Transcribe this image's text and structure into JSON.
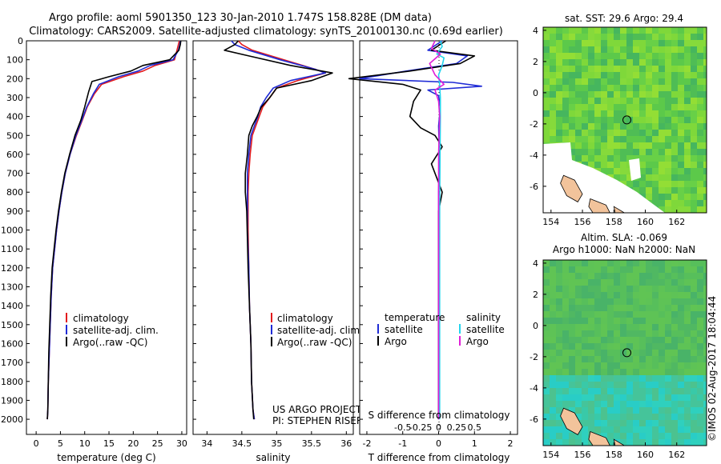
{
  "header": {
    "line1": "Argo profile: aoml 5901350_123 30-Jan-2010 1.747S 158.828E (DM data)",
    "line2": "Climatology: CARS2009. Satellite-adjusted climatology: synTS_20100130.nc (0.69d earlier)"
  },
  "colors": {
    "climatology": "#e31a1c",
    "satellite": "#1f2bd6",
    "argo": "#000000",
    "sat_salinity": "#23d5ee",
    "argo_salinity": "#e01ed8",
    "land": "#f2c39b"
  },
  "icons": {
    "legend_swatch": "line-swatch-icon",
    "float_marker": "circle-marker-icon"
  },
  "credits": {
    "project": "US ARGO PROJECT",
    "pi": "PI: STEPHEN RISER",
    "stamp": "©IMOS 02-Aug-2017 18:04:44"
  },
  "chart_data": [
    {
      "type": "line",
      "id": "temperature",
      "xlabel": "temperature (deg C)",
      "ylabel": "",
      "xlim": [
        -2,
        31
      ],
      "ylim": [
        2080,
        0
      ],
      "xticks": [
        0,
        5,
        10,
        15,
        20,
        25,
        30
      ],
      "yticks": [
        0,
        100,
        200,
        300,
        400,
        500,
        600,
        700,
        800,
        900,
        1000,
        1100,
        1200,
        1300,
        1400,
        1500,
        1600,
        1700,
        1800,
        1900,
        2000
      ],
      "legend": [
        "climatology",
        "satellite-adj. clim.",
        "Argo(..raw -QC)"
      ],
      "series": [
        {
          "name": "climatology",
          "color": "#e31a1c",
          "x": [
            29.5,
            29.3,
            29.0,
            28.5,
            24.5,
            22.0,
            18.0,
            13.5,
            12.0,
            10.5,
            9.5,
            8.3,
            7.0,
            6.0,
            5.3,
            4.7,
            4.2,
            3.8,
            3.4,
            3.1,
            2.9,
            2.7,
            2.5,
            2.4,
            2.3
          ],
          "y": [
            0,
            20,
            50,
            100,
            130,
            160,
            190,
            230,
            280,
            350,
            420,
            500,
            600,
            700,
            800,
            900,
            1000,
            1100,
            1200,
            1350,
            1500,
            1650,
            1800,
            1950,
            2000
          ]
        },
        {
          "name": "satellite-adj. clim.",
          "color": "#1f2bd6",
          "x": [
            29.7,
            29.6,
            29.3,
            28.2,
            23.5,
            21.0,
            17.0,
            13.0,
            11.8,
            10.4,
            9.4,
            8.2,
            7.0,
            6.0,
            5.3,
            4.7,
            4.2,
            3.8,
            3.4,
            3.1,
            2.9,
            2.7,
            2.5,
            2.4,
            2.3
          ],
          "y": [
            0,
            20,
            50,
            100,
            130,
            160,
            190,
            230,
            280,
            350,
            420,
            500,
            600,
            700,
            800,
            900,
            1000,
            1100,
            1200,
            1350,
            1500,
            1650,
            1800,
            1950,
            2000
          ]
        },
        {
          "name": "Argo(..raw -QC)",
          "color": "#000000",
          "x": [
            29.8,
            29.7,
            29.4,
            27.5,
            22.0,
            19.5,
            15.0,
            11.5,
            10.8,
            10.0,
            9.2,
            8.0,
            6.9,
            5.9,
            5.2,
            4.6,
            4.1,
            3.7,
            3.3,
            3.0,
            2.8,
            2.6,
            2.5,
            2.4,
            2.3
          ],
          "y": [
            0,
            20,
            50,
            100,
            130,
            160,
            190,
            215,
            270,
            350,
            420,
            500,
            600,
            700,
            800,
            900,
            1000,
            1100,
            1200,
            1350,
            1500,
            1650,
            1800,
            1950,
            2000
          ]
        }
      ]
    },
    {
      "type": "line",
      "id": "salinity",
      "xlabel": "salinity",
      "xlim": [
        33.8,
        36.1
      ],
      "ylim": [
        2080,
        0
      ],
      "xticks": [
        34,
        34.5,
        35,
        35.5,
        36
      ],
      "legend": [
        "climatology",
        "satellite-adj. clim.",
        "Argo(..raw -QC)"
      ],
      "series": [
        {
          "name": "climatology",
          "color": "#e31a1c",
          "x": [
            34.45,
            34.5,
            34.65,
            35.1,
            35.55,
            35.7,
            35.3,
            35.0,
            34.9,
            34.8,
            34.75,
            34.7,
            34.65,
            34.62,
            34.6,
            34.59,
            34.59,
            34.6,
            34.61,
            34.63,
            34.64,
            34.66,
            34.68
          ],
          "y": [
            0,
            20,
            50,
            100,
            150,
            170,
            210,
            250,
            300,
            350,
            400,
            450,
            500,
            600,
            700,
            800,
            1000,
            1200,
            1400,
            1600,
            1800,
            1950,
            2000
          ]
        },
        {
          "name": "satellite-adj. clim.",
          "color": "#1f2bd6",
          "x": [
            34.35,
            34.4,
            34.6,
            35.05,
            35.55,
            35.7,
            35.2,
            34.95,
            34.85,
            34.77,
            34.73,
            34.68,
            34.63,
            34.6,
            34.58,
            34.58,
            34.58,
            34.6,
            34.61,
            34.63,
            34.64,
            34.66,
            34.68
          ],
          "y": [
            0,
            20,
            50,
            100,
            150,
            170,
            210,
            250,
            300,
            350,
            400,
            450,
            500,
            600,
            700,
            800,
            1000,
            1200,
            1400,
            1600,
            1800,
            1950,
            2000
          ]
        },
        {
          "name": "Argo(..raw -QC)",
          "color": "#000000",
          "x": [
            34.45,
            34.4,
            34.25,
            34.6,
            35.2,
            35.8,
            35.5,
            35.0,
            34.9,
            34.78,
            34.72,
            34.65,
            34.6,
            34.58,
            34.55,
            34.55,
            34.57,
            34.59,
            34.61,
            34.63,
            34.64,
            34.66,
            34.67
          ],
          "y": [
            0,
            20,
            50,
            80,
            130,
            170,
            210,
            250,
            300,
            350,
            400,
            450,
            500,
            600,
            700,
            800,
            900,
            1200,
            1400,
            1600,
            1800,
            1950,
            2000
          ]
        }
      ]
    },
    {
      "type": "line",
      "id": "difference",
      "xlabel": "T difference from climatology",
      "xlabel_top": "S difference from climatology",
      "xlim": [
        -2.2,
        2.2
      ],
      "ylim": [
        2080,
        0
      ],
      "xticks": [
        -2,
        -1,
        0,
        1,
        2
      ],
      "xticks_top": [
        "-0.5",
        "-0.25",
        "0",
        "0.25",
        "0.5"
      ],
      "legend_headings": [
        "temperature",
        "salinity"
      ],
      "legend": [
        "satellite",
        "Argo",
        "satellite",
        "Argo"
      ],
      "series": [
        {
          "name": "satellite",
          "group": "temperature",
          "color": "#1f2bd6",
          "x": [
            0.1,
            -0.3,
            0.8,
            0.5,
            -0.9,
            -2.2,
            0.4,
            1.2,
            -0.3,
            0.0,
            0.05,
            0.0,
            0.02,
            0.0,
            0.0,
            0.0,
            0.0
          ],
          "y": [
            0,
            50,
            80,
            120,
            160,
            200,
            220,
            240,
            260,
            290,
            350,
            450,
            600,
            800,
            1200,
            1600,
            2000
          ]
        },
        {
          "name": "Argo",
          "group": "temperature",
          "color": "#000000",
          "x": [
            0.2,
            -0.2,
            1.0,
            0.6,
            -0.8,
            -2.5,
            -1.0,
            -0.5,
            -0.7,
            -0.8,
            -0.5,
            -0.1,
            0.1,
            -0.2,
            0.1,
            0.0,
            0.0,
            0.0,
            0.0
          ],
          "y": [
            0,
            50,
            80,
            120,
            160,
            200,
            230,
            260,
            320,
            400,
            460,
            500,
            560,
            650,
            800,
            900,
            1200,
            1600,
            2000
          ]
        },
        {
          "name": "satellite",
          "group": "salinity",
          "color": "#23d5ee",
          "x": [
            0.05,
            0.1,
            -0.05,
            0.15,
            0.1,
            0.0,
            0.03,
            0.05,
            0.05,
            0.04,
            0.03,
            0.03,
            0.03,
            0.03
          ],
          "y": [
            0,
            30,
            70,
            90,
            130,
            180,
            230,
            300,
            400,
            600,
            900,
            1200,
            1600,
            2000
          ]
        },
        {
          "name": "Argo",
          "group": "salinity",
          "color": "#e01ed8",
          "x": [
            -0.1,
            -0.2,
            0.05,
            -0.25,
            -0.1,
            0.15,
            -0.1,
            0.0,
            0.03,
            0.0,
            0.0,
            0.0,
            0.0
          ],
          "y": [
            0,
            40,
            70,
            120,
            180,
            230,
            260,
            320,
            400,
            600,
            900,
            1300,
            2000
          ]
        }
      ]
    },
    {
      "type": "heatmap",
      "id": "sst_map",
      "title": "sat. SST: 29.6 Argo: 29.4",
      "xlim": [
        153.5,
        163.9
      ],
      "ylim": [
        -7.7,
        4.2
      ],
      "xticks": [
        154,
        156,
        158,
        160,
        162
      ],
      "yticks": [
        4,
        2,
        0,
        -2,
        -4,
        -6
      ],
      "marker": {
        "lon": 158.828,
        "lat": -1.747
      }
    },
    {
      "type": "heatmap",
      "id": "sla_map",
      "title": "Altim. SLA: -0.069",
      "subtitle": "Argo h1000: NaN h2000: NaN",
      "xlim": [
        153.5,
        163.9
      ],
      "ylim": [
        -7.7,
        4.2
      ],
      "xticks": [
        154,
        156,
        158,
        160,
        162
      ],
      "yticks": [
        4,
        2,
        0,
        -2,
        -4,
        -6
      ],
      "marker": {
        "lon": 158.828,
        "lat": -1.747
      }
    }
  ]
}
